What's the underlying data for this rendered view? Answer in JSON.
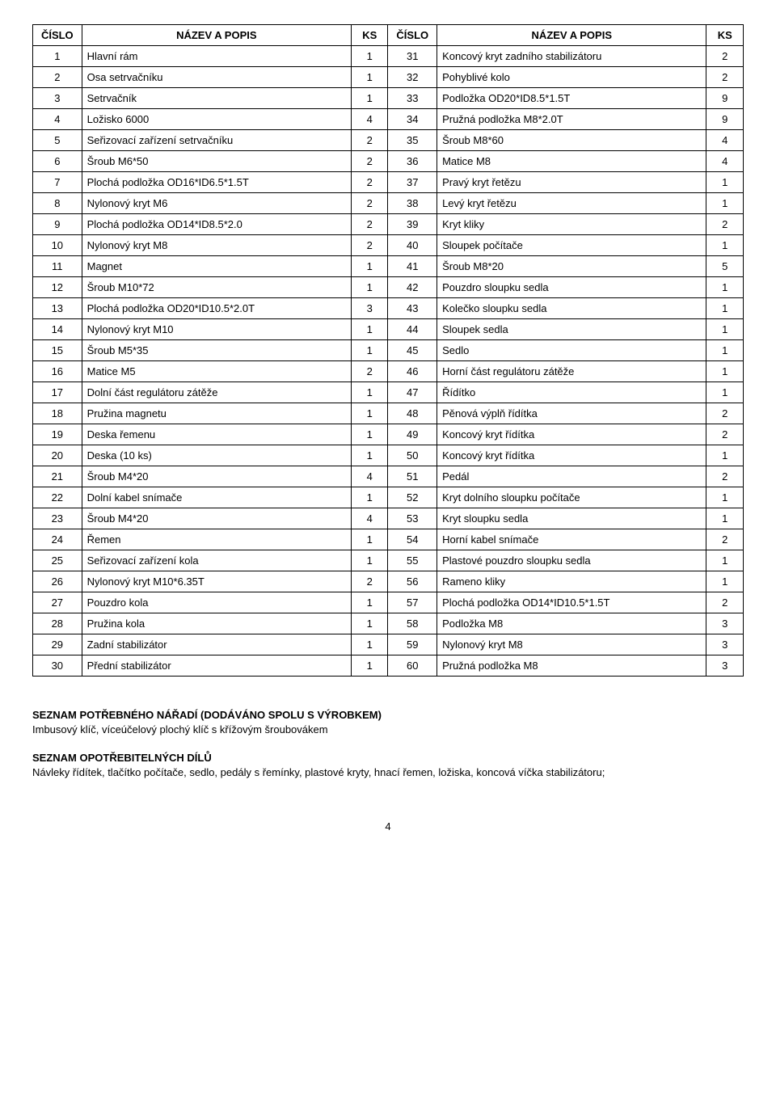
{
  "table": {
    "headers": {
      "cislo": "ČÍSLO",
      "nazev": "NÁZEV A POPIS",
      "ks": "KS"
    },
    "rows_left": [
      {
        "n": "1",
        "name": "Hlavní rám",
        "k": "1"
      },
      {
        "n": "2",
        "name": "Osa setrvačníku",
        "k": "1"
      },
      {
        "n": "3",
        "name": "Setrvačník",
        "k": "1"
      },
      {
        "n": "4",
        "name": "Ložisko 6000",
        "k": "4"
      },
      {
        "n": "5",
        "name": "Seřizovací zařízení setrvačníku",
        "k": "2"
      },
      {
        "n": "6",
        "name": "Šroub M6*50",
        "k": "2"
      },
      {
        "n": "7",
        "name": "Plochá podložka OD16*ID6.5*1.5T",
        "k": "2"
      },
      {
        "n": "8",
        "name": "Nylonový kryt M6",
        "k": "2"
      },
      {
        "n": "9",
        "name": "Plochá podložka OD14*ID8.5*2.0",
        "k": "2"
      },
      {
        "n": "10",
        "name": "Nylonový kryt M8",
        "k": "2"
      },
      {
        "n": "11",
        "name": "Magnet",
        "k": "1"
      },
      {
        "n": "12",
        "name": "Šroub M10*72",
        "k": "1"
      },
      {
        "n": "13",
        "name": "Plochá podložka OD20*ID10.5*2.0T",
        "k": "3"
      },
      {
        "n": "14",
        "name": "Nylonový kryt M10",
        "k": "1"
      },
      {
        "n": "15",
        "name": "Šroub M5*35",
        "k": "1"
      },
      {
        "n": "16",
        "name": "Matice M5",
        "k": "2"
      },
      {
        "n": "17",
        "name": "Dolní část regulátoru zátěže",
        "k": "1"
      },
      {
        "n": "18",
        "name": "Pružina magnetu",
        "k": "1"
      },
      {
        "n": "19",
        "name": "Deska řemenu",
        "k": "1"
      },
      {
        "n": "20",
        "name": "Deska (10 ks)",
        "k": "1"
      },
      {
        "n": "21",
        "name": "Šroub M4*20",
        "k": "4"
      },
      {
        "n": "22",
        "name": "Dolní kabel snímače",
        "k": "1"
      },
      {
        "n": "23",
        "name": "Šroub M4*20",
        "k": "4"
      },
      {
        "n": "24",
        "name": "Řemen",
        "k": "1"
      },
      {
        "n": "25",
        "name": "Seřizovací zařízení kola",
        "k": "1"
      },
      {
        "n": "26",
        "name": "Nylonový kryt M10*6.35T",
        "k": "2"
      },
      {
        "n": "27",
        "name": "Pouzdro kola",
        "k": "1"
      },
      {
        "n": "28",
        "name": "Pružina kola",
        "k": "1"
      },
      {
        "n": "29",
        "name": "Zadní stabilizátor",
        "k": "1"
      },
      {
        "n": "30",
        "name": "Přední stabilizátor",
        "k": "1"
      }
    ],
    "rows_right": [
      {
        "n": "31",
        "name": "Koncový kryt zadního stabilizátoru",
        "k": "2"
      },
      {
        "n": "32",
        "name": "Pohyblivé kolo",
        "k": "2"
      },
      {
        "n": "33",
        "name": "Podložka OD20*ID8.5*1.5T",
        "k": "9"
      },
      {
        "n": "34",
        "name": "Pružná podložka M8*2.0T",
        "k": "9"
      },
      {
        "n": "35",
        "name": "Šroub M8*60",
        "k": "4"
      },
      {
        "n": "36",
        "name": "Matice M8",
        "k": "4"
      },
      {
        "n": "37",
        "name": "Pravý kryt řetězu",
        "k": "1"
      },
      {
        "n": "38",
        "name": "Levý kryt řetězu",
        "k": "1"
      },
      {
        "n": "39",
        "name": "Kryt kliky",
        "k": "2"
      },
      {
        "n": "40",
        "name": "Sloupek počítače",
        "k": "1"
      },
      {
        "n": "41",
        "name": "Šroub M8*20",
        "k": "5"
      },
      {
        "n": "42",
        "name": "Pouzdro sloupku sedla",
        "k": "1"
      },
      {
        "n": "43",
        "name": "Kolečko sloupku sedla",
        "k": "1"
      },
      {
        "n": "44",
        "name": "Sloupek sedla",
        "k": "1"
      },
      {
        "n": "45",
        "name": "Sedlo",
        "k": "1"
      },
      {
        "n": "46",
        "name": "Horní část regulátoru zátěže",
        "k": "1"
      },
      {
        "n": "47",
        "name": "Řídítko",
        "k": "1"
      },
      {
        "n": "48",
        "name": "Pěnová výplň řídítka",
        "k": "2"
      },
      {
        "n": "49",
        "name": "Koncový kryt řídítka",
        "k": "2"
      },
      {
        "n": "50",
        "name": "Koncový kryt řídítka",
        "k": "1"
      },
      {
        "n": "51",
        "name": "Pedál",
        "k": "2"
      },
      {
        "n": "52",
        "name": "Kryt dolního sloupku počítače",
        "k": "1"
      },
      {
        "n": "53",
        "name": "Kryt sloupku sedla",
        "k": "1"
      },
      {
        "n": "54",
        "name": "Horní kabel snímače",
        "k": "2"
      },
      {
        "n": "55",
        "name": "Plastové pouzdro sloupku sedla",
        "k": "1"
      },
      {
        "n": "56",
        "name": "Rameno kliky",
        "k": "1"
      },
      {
        "n": "57",
        "name": "Plochá podložka OD14*ID10.5*1.5T",
        "k": "2"
      },
      {
        "n": "58",
        "name": "Podložka M8",
        "k": "3"
      },
      {
        "n": "59",
        "name": "Nylonový kryt M8",
        "k": "3"
      },
      {
        "n": "60",
        "name": "Pružná podložka M8",
        "k": "3"
      }
    ]
  },
  "sections": {
    "tools_title": "SEZNAM POTŘEBNÉHO NÁŘADÍ (DODÁVÁNO SPOLU S VÝROBKEM)",
    "tools_text": "Imbusový klíč, víceúčelový plochý klíč s křížovým šroubovákem",
    "wear_title": "SEZNAM OPOTŘEBITELNÝCH DÍLŮ",
    "wear_text": "Návleky řídítek, tlačítko počítače, sedlo, pedály s řemínky, plastové kryty, hnací řemen, ložiska, koncová víčka stabilizátoru;"
  },
  "page_number": "4"
}
